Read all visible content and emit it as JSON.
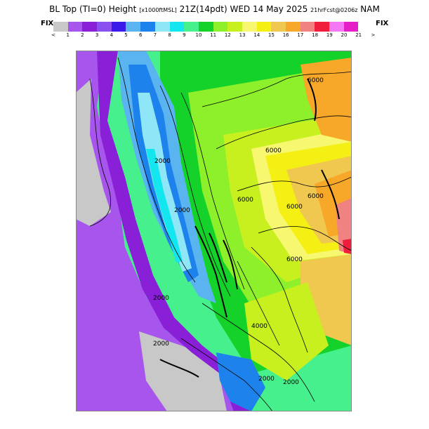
{
  "title": {
    "main": "BL Top (TI=0) Height",
    "units": "[x1000ftMSL]",
    "valid": "21Z(14pdt) WED 14 May 2025",
    "fcst": "21hrFcst@0206z",
    "model": "NAM"
  },
  "fix_left": "FIX",
  "fix_right": "FIX",
  "scale": {
    "colors": [
      "#c8c8c8",
      "#a855ee",
      "#8a1fd8",
      "#8a50f0",
      "#3a1ae8",
      "#5ab4f0",
      "#1e82ec",
      "#8ee6f6",
      "#14e6f0",
      "#46f08c",
      "#14d22a",
      "#8ef02a",
      "#c8f01e",
      "#f8f870",
      "#f4f014",
      "#f0c850",
      "#f8a828",
      "#f08282",
      "#f01e3c",
      "#f478f4",
      "#e61ec8"
    ],
    "ticks": [
      "<",
      "1",
      "2",
      "3",
      "4",
      "5",
      "6",
      "7",
      "8",
      "9",
      "10",
      "11",
      "12",
      "13",
      "14",
      "15",
      "16",
      "17",
      "18",
      "19",
      "20",
      "21",
      ">"
    ]
  },
  "contour_labels": [
    "6000",
    "6000",
    "6000",
    "6000",
    "6000",
    "2000",
    "2000",
    "2000",
    "4000",
    "6000",
    "2000",
    "2000",
    "2000"
  ]
}
